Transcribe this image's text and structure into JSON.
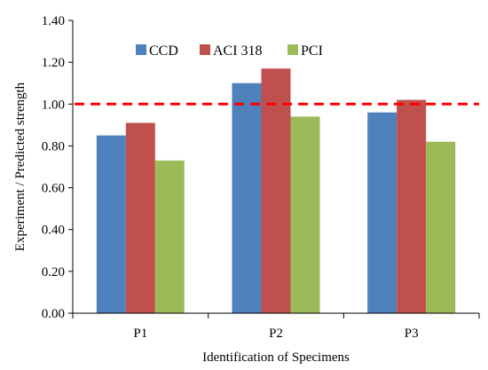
{
  "chart_data": {
    "type": "bar",
    "title": "",
    "xlabel": "Identification  of Specimens",
    "ylabel": "Experiment / Predicted strength",
    "categories": [
      "P1",
      "P2",
      "P3"
    ],
    "series": [
      {
        "name": "CCD",
        "values": [
          0.85,
          1.1,
          0.96
        ],
        "color": "#4F81BD"
      },
      {
        "name": "ACI 318",
        "values": [
          0.91,
          1.17,
          1.02
        ],
        "color": "#C0504D"
      },
      {
        "name": "PCI",
        "values": [
          0.73,
          0.94,
          0.82
        ],
        "color": "#9BBB59"
      }
    ],
    "ylim": [
      0,
      1.4
    ],
    "yticks": [
      "0.00",
      "0.20",
      "0.40",
      "0.60",
      "0.80",
      "1.00",
      "1.20",
      "1.40"
    ],
    "reference_line": {
      "value": 1.0,
      "color": "#FF0000",
      "style": "dashed"
    },
    "grid": false,
    "legend_position": "top-left"
  }
}
